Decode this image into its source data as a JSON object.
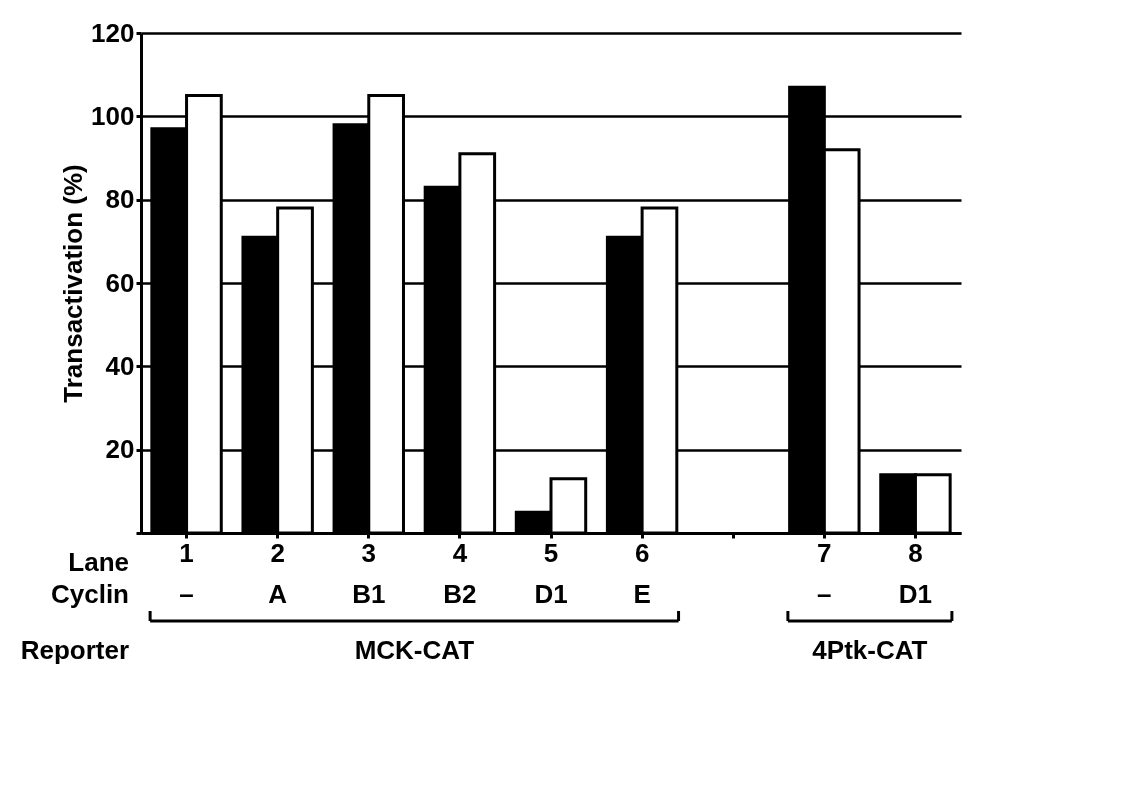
{
  "chart_data": {
    "type": "bar",
    "ylabel": "Transactivation (%)",
    "categories": [
      "1",
      "2",
      "3",
      "4",
      "5",
      "6",
      null,
      "7",
      "8"
    ],
    "series": [
      {
        "color": "#000000",
        "values": [
          97,
          71,
          98,
          83,
          5,
          71,
          null,
          107,
          14
        ]
      },
      {
        "color": "#ffffff",
        "values": [
          105,
          78,
          105,
          91,
          13,
          78,
          null,
          92,
          14
        ]
      }
    ],
    "ylim": [
      0,
      120
    ],
    "yticks": [
      {
        "value": 0,
        "label": null
      },
      20,
      40,
      60,
      80,
      100,
      120
    ],
    "grid": "y",
    "annotations": [
      "–",
      "A",
      "B1",
      "B2",
      "D1",
      "E",
      "–",
      "D1",
      "Lane",
      "Cyclin",
      "Reporter",
      "MCK-CAT",
      "4Ptk-CAT"
    ]
  }
}
